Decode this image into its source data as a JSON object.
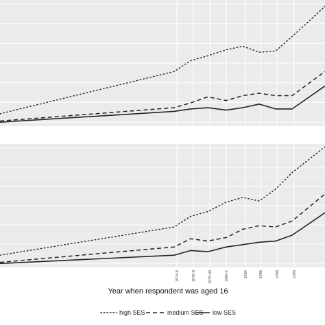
{
  "chart_data": {
    "type": "line",
    "xlabel": "Year when respondent was aged 16",
    "x_tick_labels": [
      "1974-6",
      "1976-8",
      "1978-80",
      "1980-2",
      "1984",
      "1986",
      "1988",
      "1990"
    ],
    "legend": {
      "position": "bottom",
      "entries": [
        {
          "label": "high SES",
          "line_style": "dotted"
        },
        {
          "label": "medium SES",
          "line_style": "dashed"
        },
        {
          "label": "low SES",
          "line_style": "solid"
        }
      ]
    },
    "grid": true,
    "panels": [
      {
        "ylim": [
          0,
          1
        ],
        "series": [
          {
            "name": "high SES",
            "points": [
              [
                0,
                0.08
              ],
              [
                1,
                0.43
              ],
              [
                2,
                0.52
              ],
              [
                3,
                0.56
              ],
              [
                4,
                0.61
              ],
              [
                5,
                0.64
              ],
              [
                6,
                0.59
              ],
              [
                7,
                0.6
              ],
              [
                8,
                0.72
              ],
              [
                9,
                0.97
              ]
            ]
          },
          {
            "name": "medium SES",
            "points": [
              [
                0,
                0.02
              ],
              [
                1,
                0.13
              ],
              [
                2,
                0.17
              ],
              [
                3,
                0.22
              ],
              [
                4,
                0.19
              ],
              [
                5,
                0.23
              ],
              [
                6,
                0.25
              ],
              [
                7,
                0.23
              ],
              [
                8,
                0.23
              ],
              [
                9,
                0.43
              ]
            ]
          },
          {
            "name": "low SES",
            "points": [
              [
                0,
                0.01
              ],
              [
                1,
                0.1
              ],
              [
                2,
                0.12
              ],
              [
                3,
                0.13
              ],
              [
                4,
                0.11
              ],
              [
                5,
                0.13
              ],
              [
                6,
                0.16
              ],
              [
                7,
                0.12
              ],
              [
                8,
                0.12
              ],
              [
                9,
                0.31
              ]
            ]
          }
        ]
      },
      {
        "ylim": [
          0,
          1
        ],
        "series": [
          {
            "name": "high SES",
            "points": [
              [
                0,
                0.08
              ],
              [
                1,
                0.32
              ],
              [
                2,
                0.41
              ],
              [
                3,
                0.45
              ],
              [
                4,
                0.53
              ],
              [
                5,
                0.57
              ],
              [
                6,
                0.54
              ],
              [
                7,
                0.64
              ],
              [
                8,
                0.78
              ],
              [
                9,
                1.0
              ]
            ]
          },
          {
            "name": "medium SES",
            "points": [
              [
                0,
                0.02
              ],
              [
                1,
                0.15
              ],
              [
                2,
                0.22
              ],
              [
                3,
                0.2
              ],
              [
                4,
                0.23
              ],
              [
                5,
                0.3
              ],
              [
                6,
                0.33
              ],
              [
                7,
                0.32
              ],
              [
                8,
                0.37
              ],
              [
                9,
                0.6
              ]
            ]
          },
          {
            "name": "low SES",
            "points": [
              [
                0,
                0.01
              ],
              [
                1,
                0.08
              ],
              [
                2,
                0.12
              ],
              [
                3,
                0.11
              ],
              [
                4,
                0.15
              ],
              [
                5,
                0.17
              ],
              [
                6,
                0.19
              ],
              [
                7,
                0.2
              ],
              [
                8,
                0.25
              ],
              [
                9,
                0.44
              ]
            ]
          }
        ]
      }
    ]
  }
}
